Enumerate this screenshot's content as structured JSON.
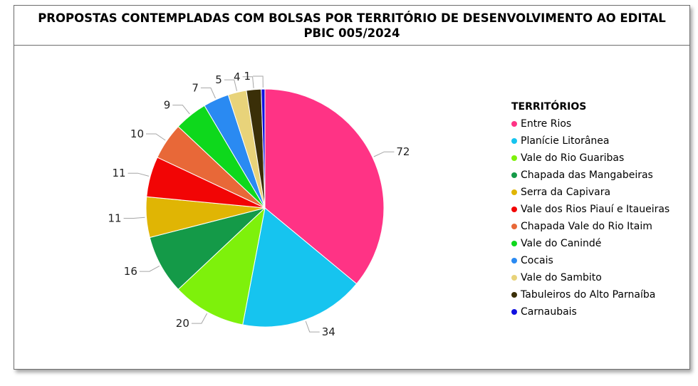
{
  "chart_data": {
    "type": "pie",
    "title": "PROPOSTAS CONTEMPLADAS COM BOLSAS POR TERRITÓRIO DE DESENVOLVIMENTO AO EDITAL PBIC 005/2024",
    "legend_title": "TERRITÓRIOS",
    "legend_position": "right",
    "slices": [
      {
        "label": "Entre Rios",
        "value": 72,
        "color": "#ff3385"
      },
      {
        "label": "Planície Litorânea",
        "value": 34,
        "color": "#16c4ef"
      },
      {
        "label": "Vale do Rio Guaribas",
        "value": 20,
        "color": "#7ef10b"
      },
      {
        "label": "Chapada das Mangabeiras",
        "value": 16,
        "color": "#149a48"
      },
      {
        "label": "Serra da Capivara",
        "value": 11,
        "color": "#e0b504"
      },
      {
        "label": "Vale dos Rios Piauí e Itaueiras",
        "value": 11,
        "color": "#f20505"
      },
      {
        "label": "Chapada Vale do Rio Itaim",
        "value": 10,
        "color": "#e86838"
      },
      {
        "label": "Vale do Canindé",
        "value": 9,
        "color": "#0ed81c"
      },
      {
        "label": "Cocais",
        "value": 7,
        "color": "#2a8af2"
      },
      {
        "label": "Vale do Sambito",
        "value": 5,
        "color": "#e8d37a"
      },
      {
        "label": "Tabuleiros do Alto Parnaíba",
        "value": 4,
        "color": "#3a2f08"
      },
      {
        "label": "Carnaubais",
        "value": 1,
        "color": "#1010e0"
      }
    ]
  }
}
